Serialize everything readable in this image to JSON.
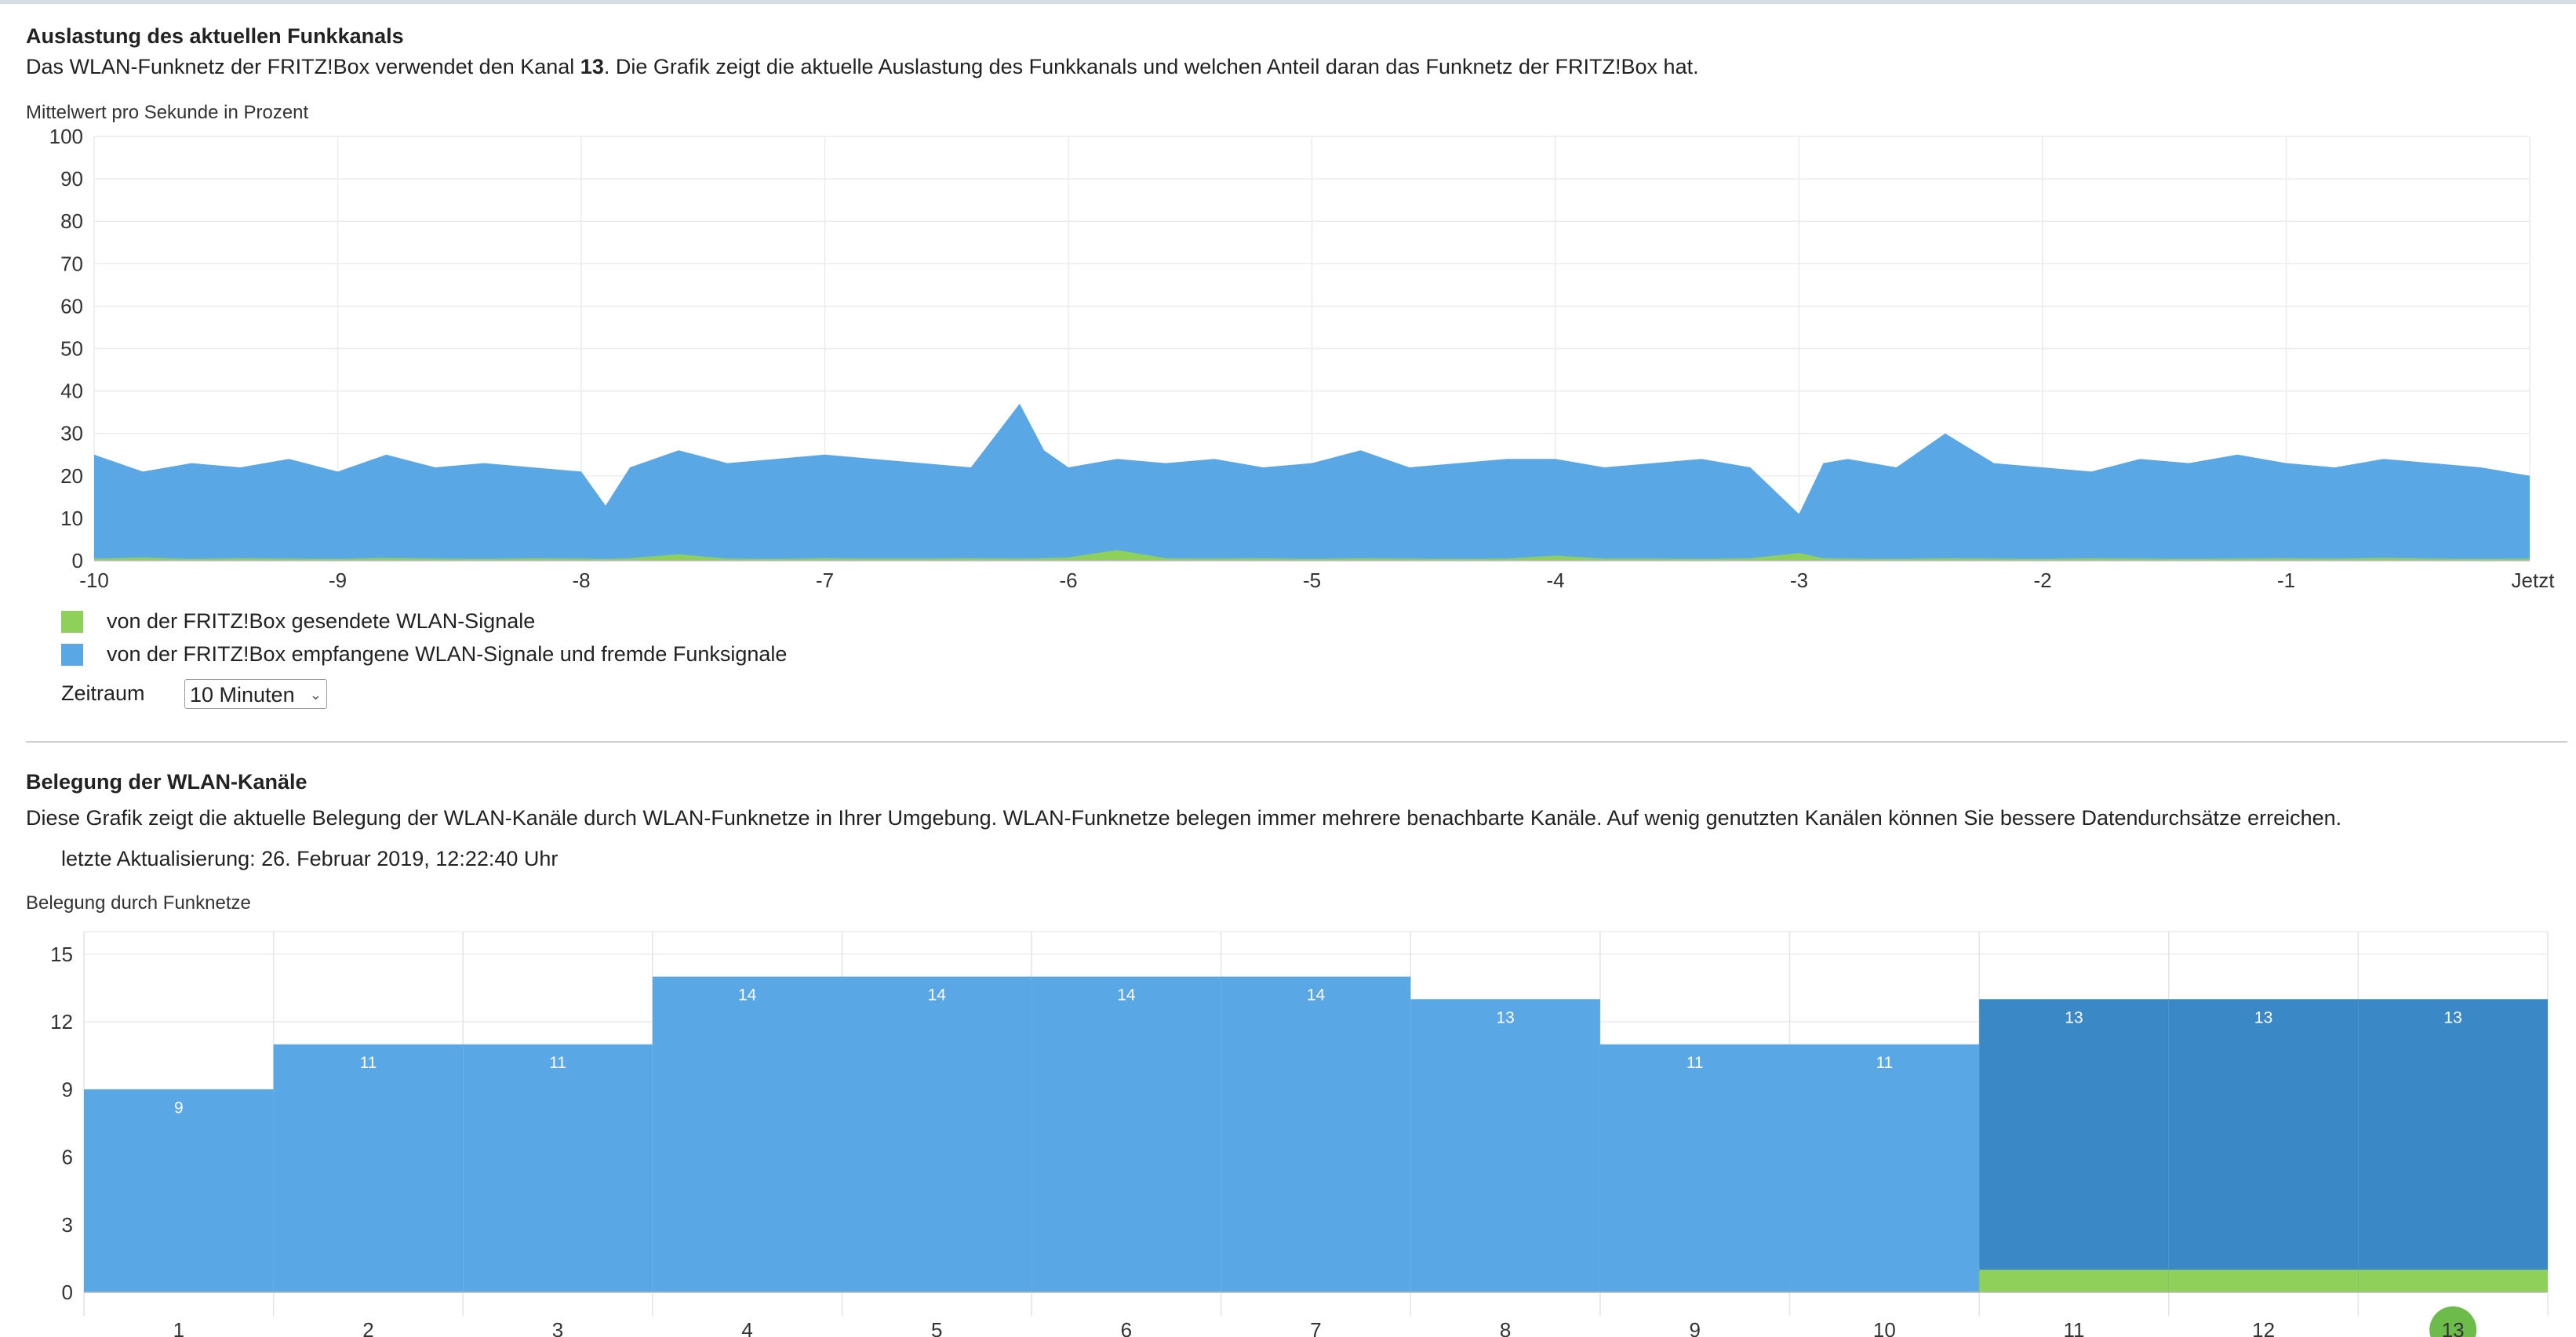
{
  "section1": {
    "title": "Auslastung des aktuellen Funkkanals",
    "desc_before": "Das WLAN-Funknetz der FRITZ!Box verwendet den Kanal ",
    "desc_channel": "13",
    "desc_after": ". Die Grafik zeigt die aktuelle Auslastung des Funkkanals und welchen Anteil daran das Funknetz der FRITZ!Box hat.",
    "legend": {
      "sent": "von der FRITZ!Box gesendete WLAN-Signale",
      "received": "von der FRITZ!Box empfangene WLAN-Signale und fremde Funksignale"
    },
    "period_label": "Zeitraum",
    "period_value": "10 Minuten"
  },
  "section2": {
    "title": "Belegung der WLAN-Kanäle",
    "desc": "Diese Grafik zeigt die aktuelle Belegung der WLAN-Kanäle durch WLAN-Funknetze in Ihrer Umgebung. WLAN-Funknetze belegen immer mehrere benachbarte Kanäle. Auf wenig genutzten Kanälen können Sie bessere Datendurchsätze erreichen.",
    "last_update": "letzte Aktualisierung: 26. Februar 2019, 12:22:40 Uhr"
  },
  "colors": {
    "sent": "#8ed05a",
    "received": "#5aa7e6",
    "own_channel": "#3b88c6",
    "own_badge": "#6dbb4a"
  },
  "chart_data": [
    {
      "type": "area",
      "title": "Mittelwert pro Sekunde in Prozent",
      "ylim": [
        0,
        100
      ],
      "yticks": [
        0,
        10,
        20,
        30,
        40,
        50,
        60,
        70,
        80,
        90,
        100
      ],
      "xlim": [
        -10,
        0
      ],
      "xticks": [
        "-10",
        "-9",
        "-8",
        "-7",
        "-6",
        "-5",
        "-4",
        "-3",
        "-2",
        "-1",
        "Jetzt"
      ],
      "grid": true,
      "series": [
        {
          "name": "von der FRITZ!Box empfangene WLAN-Signale und fremde Funksignale",
          "x": [
            -10.0,
            -9.8,
            -9.6,
            -9.4,
            -9.2,
            -9.0,
            -8.8,
            -8.6,
            -8.4,
            -8.2,
            -8.0,
            -7.9,
            -7.8,
            -7.6,
            -7.4,
            -7.2,
            -7.0,
            -6.8,
            -6.6,
            -6.4,
            -6.2,
            -6.1,
            -6.0,
            -5.8,
            -5.6,
            -5.4,
            -5.2,
            -5.0,
            -4.8,
            -4.6,
            -4.4,
            -4.2,
            -4.0,
            -3.8,
            -3.6,
            -3.4,
            -3.2,
            -3.0,
            -2.9,
            -2.8,
            -2.6,
            -2.4,
            -2.2,
            -2.0,
            -1.8,
            -1.6,
            -1.4,
            -1.2,
            -1.0,
            -0.8,
            -0.6,
            -0.4,
            -0.2,
            0.0
          ],
          "values": [
            25,
            21,
            23,
            22,
            24,
            21,
            25,
            22,
            23,
            22,
            21,
            13,
            22,
            26,
            23,
            24,
            25,
            24,
            23,
            22,
            37,
            26,
            22,
            24,
            23,
            24,
            22,
            23,
            26,
            22,
            23,
            24,
            24,
            22,
            23,
            24,
            22,
            11,
            23,
            24,
            22,
            30,
            23,
            22,
            21,
            24,
            23,
            25,
            23,
            22,
            24,
            23,
            22,
            20
          ]
        },
        {
          "name": "von der FRITZ!Box gesendete WLAN-Signale",
          "x": [
            -10.0,
            -9.8,
            -9.6,
            -9.4,
            -9.2,
            -9.0,
            -8.8,
            -8.6,
            -8.4,
            -8.2,
            -8.0,
            -7.9,
            -7.8,
            -7.6,
            -7.4,
            -7.2,
            -7.0,
            -6.8,
            -6.6,
            -6.4,
            -6.2,
            -6.1,
            -6.0,
            -5.8,
            -5.6,
            -5.4,
            -5.2,
            -5.0,
            -4.8,
            -4.6,
            -4.4,
            -4.2,
            -4.0,
            -3.8,
            -3.6,
            -3.4,
            -3.2,
            -3.0,
            -2.9,
            -2.8,
            -2.6,
            -2.4,
            -2.2,
            -2.0,
            -1.8,
            -1.6,
            -1.4,
            -1.2,
            -1.0,
            -0.8,
            -0.6,
            -0.4,
            -0.2,
            0.0
          ],
          "values": [
            0.5,
            0.8,
            0.4,
            0.6,
            0.5,
            0.4,
            0.7,
            0.5,
            0.4,
            0.6,
            0.5,
            0.4,
            0.6,
            1.5,
            0.5,
            0.4,
            0.6,
            0.5,
            0.5,
            0.6,
            0.5,
            0.6,
            0.8,
            2.5,
            0.6,
            0.5,
            0.6,
            0.4,
            0.6,
            0.5,
            0.4,
            0.5,
            1.2,
            0.5,
            0.5,
            0.4,
            0.6,
            1.8,
            0.6,
            0.5,
            0.4,
            0.6,
            0.5,
            0.4,
            0.6,
            0.5,
            0.4,
            0.5,
            0.6,
            0.5,
            0.7,
            0.5,
            0.4,
            0.5
          ]
        }
      ]
    },
    {
      "type": "bar",
      "title": "Belegung durch Funknetze",
      "categories": [
        "1",
        "2",
        "3",
        "4",
        "5",
        "6",
        "7",
        "8",
        "9",
        "10",
        "11",
        "12",
        "13"
      ],
      "values": [
        9,
        11,
        11,
        14,
        14,
        14,
        14,
        13,
        11,
        11,
        13,
        13,
        13
      ],
      "own_channel_share": [
        0,
        0,
        0,
        0,
        0,
        0,
        0,
        0,
        0,
        0,
        1,
        1,
        1
      ],
      "highlight_channels": [
        "11",
        "12",
        "13"
      ],
      "current_channel": "13",
      "ylim": [
        0,
        16
      ],
      "yticks": [
        0,
        3,
        6,
        9,
        12,
        15
      ],
      "grid": true
    }
  ]
}
